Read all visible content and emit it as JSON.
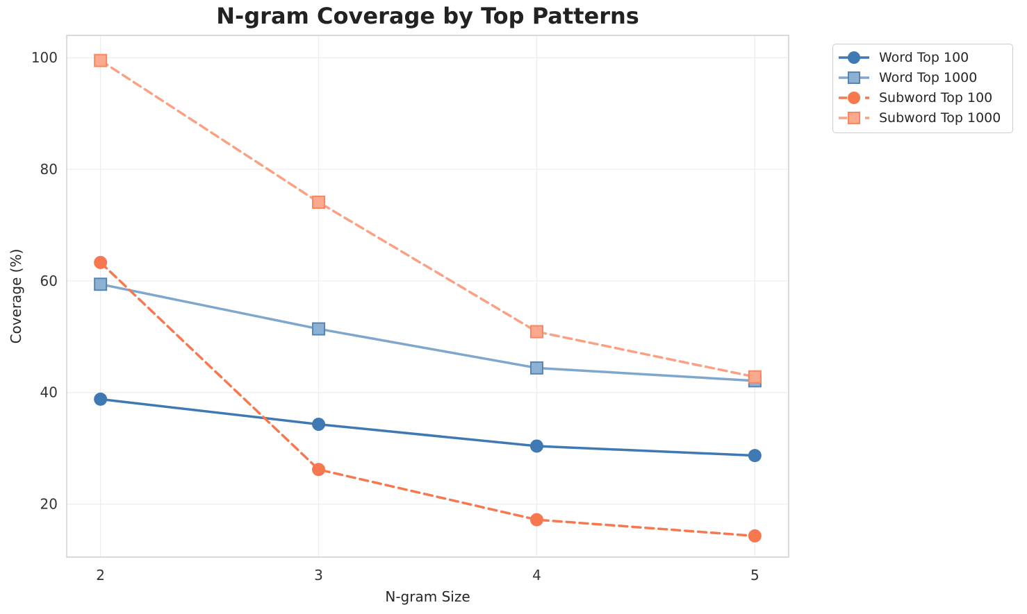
{
  "title": "N-gram Coverage by Top Patterns",
  "chart_data": {
    "type": "line",
    "title": "N-gram Coverage by Top Patterns",
    "xlabel": "N-gram Size",
    "ylabel": "Coverage (%)",
    "x": [
      2,
      3,
      4,
      5
    ],
    "xticks": [
      2,
      3,
      4,
      5
    ],
    "yticks": [
      20,
      40,
      60,
      80,
      100
    ],
    "xlim": [
      1.845,
      5.155
    ],
    "ylim": [
      10.5,
      104.0
    ],
    "grid": true,
    "legend_position": "outside-upper-right",
    "series": [
      {
        "name": "Word Top 100",
        "values": [
          38.8,
          34.3,
          30.4,
          28.7
        ],
        "color": "#3e79b4",
        "marker": "circle",
        "line_style": "solid"
      },
      {
        "name": "Word Top 1000",
        "values": [
          59.4,
          51.4,
          44.4,
          42.1
        ],
        "color": "#7fa7cd",
        "marker": "square",
        "marker_fill": "#8db1d3",
        "marker_edge": "#5585b5",
        "line_style": "solid"
      },
      {
        "name": "Subword Top 100",
        "values": [
          63.3,
          26.2,
          17.2,
          14.3
        ],
        "color": "#f7774f",
        "marker": "circle",
        "line_style": "dashed"
      },
      {
        "name": "Subword Top 1000",
        "values": [
          99.5,
          74.1,
          50.9,
          42.8
        ],
        "color": "#faa184",
        "marker": "square",
        "marker_fill": "#fba98e",
        "marker_edge": "#f8875f",
        "line_style": "dashed"
      }
    ],
    "style": {
      "grid_color": "#ededed",
      "spine_color": "#d4d4d4",
      "text_color": "#333333",
      "background": "#ffffff"
    }
  }
}
